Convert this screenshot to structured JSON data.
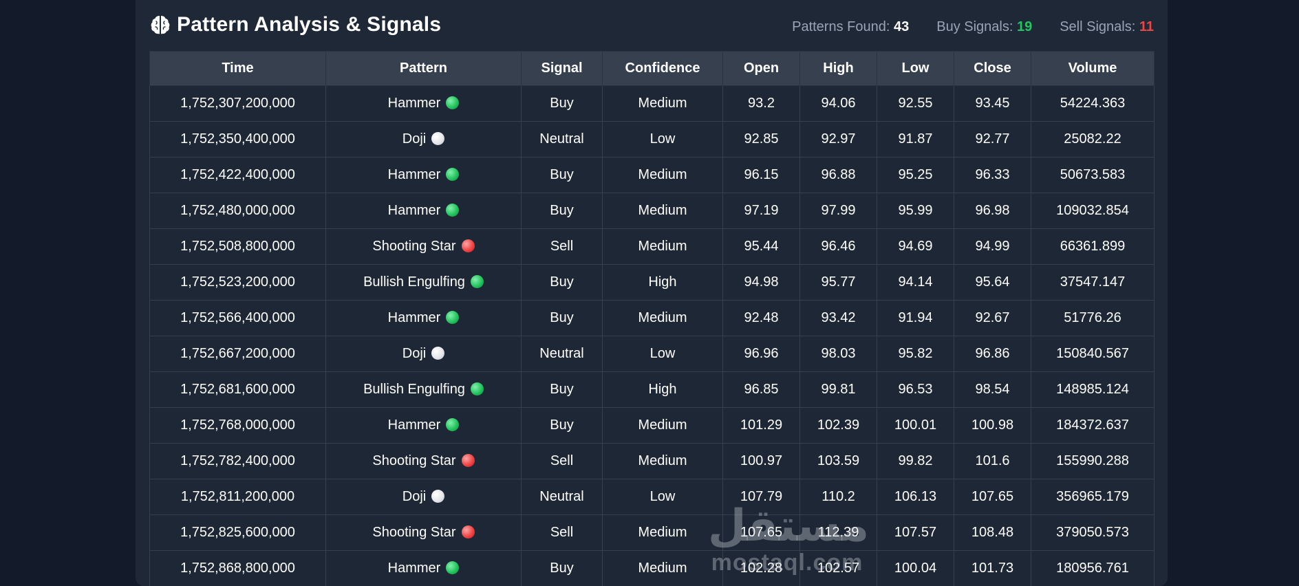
{
  "header": {
    "title": "Pattern Analysis & Signals",
    "icon": "brain-icon",
    "stats": [
      {
        "label": "Patterns Found:",
        "value": "43",
        "color": "#ffffff"
      },
      {
        "label": "Buy Signals:",
        "value": "19",
        "color": "#22c55e"
      },
      {
        "label": "Sell Signals:",
        "value": "11",
        "color": "#ef4444"
      }
    ]
  },
  "table": {
    "columns": [
      "Time",
      "Pattern",
      "Signal",
      "Confidence",
      "Open",
      "High",
      "Low",
      "Close",
      "Volume"
    ],
    "rows": [
      {
        "time": "1,752,307,200,000",
        "pattern": "Hammer",
        "dot": "green",
        "signal": "Buy",
        "confidence": "Medium",
        "open": "93.2",
        "high": "94.06",
        "low": "92.55",
        "close": "93.45",
        "volume": "54224.363"
      },
      {
        "time": "1,752,350,400,000",
        "pattern": "Doji",
        "dot": "white",
        "signal": "Neutral",
        "confidence": "Low",
        "open": "92.85",
        "high": "92.97",
        "low": "91.87",
        "close": "92.77",
        "volume": "25082.22"
      },
      {
        "time": "1,752,422,400,000",
        "pattern": "Hammer",
        "dot": "green",
        "signal": "Buy",
        "confidence": "Medium",
        "open": "96.15",
        "high": "96.88",
        "low": "95.25",
        "close": "96.33",
        "volume": "50673.583"
      },
      {
        "time": "1,752,480,000,000",
        "pattern": "Hammer",
        "dot": "green",
        "signal": "Buy",
        "confidence": "Medium",
        "open": "97.19",
        "high": "97.99",
        "low": "95.99",
        "close": "96.98",
        "volume": "109032.854"
      },
      {
        "time": "1,752,508,800,000",
        "pattern": "Shooting Star",
        "dot": "red",
        "signal": "Sell",
        "confidence": "Medium",
        "open": "95.44",
        "high": "96.46",
        "low": "94.69",
        "close": "94.99",
        "volume": "66361.899"
      },
      {
        "time": "1,752,523,200,000",
        "pattern": "Bullish Engulfing",
        "dot": "green",
        "signal": "Buy",
        "confidence": "High",
        "open": "94.98",
        "high": "95.77",
        "low": "94.14",
        "close": "95.64",
        "volume": "37547.147"
      },
      {
        "time": "1,752,566,400,000",
        "pattern": "Hammer",
        "dot": "green",
        "signal": "Buy",
        "confidence": "Medium",
        "open": "92.48",
        "high": "93.42",
        "low": "91.94",
        "close": "92.67",
        "volume": "51776.26"
      },
      {
        "time": "1,752,667,200,000",
        "pattern": "Doji",
        "dot": "white",
        "signal": "Neutral",
        "confidence": "Low",
        "open": "96.96",
        "high": "98.03",
        "low": "95.82",
        "close": "96.86",
        "volume": "150840.567"
      },
      {
        "time": "1,752,681,600,000",
        "pattern": "Bullish Engulfing",
        "dot": "green",
        "signal": "Buy",
        "confidence": "High",
        "open": "96.85",
        "high": "99.81",
        "low": "96.53",
        "close": "98.54",
        "volume": "148985.124"
      },
      {
        "time": "1,752,768,000,000",
        "pattern": "Hammer",
        "dot": "green",
        "signal": "Buy",
        "confidence": "Medium",
        "open": "101.29",
        "high": "102.39",
        "low": "100.01",
        "close": "100.98",
        "volume": "184372.637"
      },
      {
        "time": "1,752,782,400,000",
        "pattern": "Shooting Star",
        "dot": "red",
        "signal": "Sell",
        "confidence": "Medium",
        "open": "100.97",
        "high": "103.59",
        "low": "99.82",
        "close": "101.6",
        "volume": "155990.288"
      },
      {
        "time": "1,752,811,200,000",
        "pattern": "Doji",
        "dot": "white",
        "signal": "Neutral",
        "confidence": "Low",
        "open": "107.79",
        "high": "110.2",
        "low": "106.13",
        "close": "107.65",
        "volume": "356965.179"
      },
      {
        "time": "1,752,825,600,000",
        "pattern": "Shooting Star",
        "dot": "red",
        "signal": "Sell",
        "confidence": "Medium",
        "open": "107.65",
        "high": "112.39",
        "low": "107.57",
        "close": "108.48",
        "volume": "379050.573"
      },
      {
        "time": "1,752,868,800,000",
        "pattern": "Hammer",
        "dot": "green",
        "signal": "Buy",
        "confidence": "Medium",
        "open": "102.28",
        "high": "102.57",
        "low": "100.04",
        "close": "101.73",
        "volume": "180956.761"
      }
    ]
  },
  "watermark": {
    "arabic": "مستقل",
    "latin": "mostaql.com"
  }
}
